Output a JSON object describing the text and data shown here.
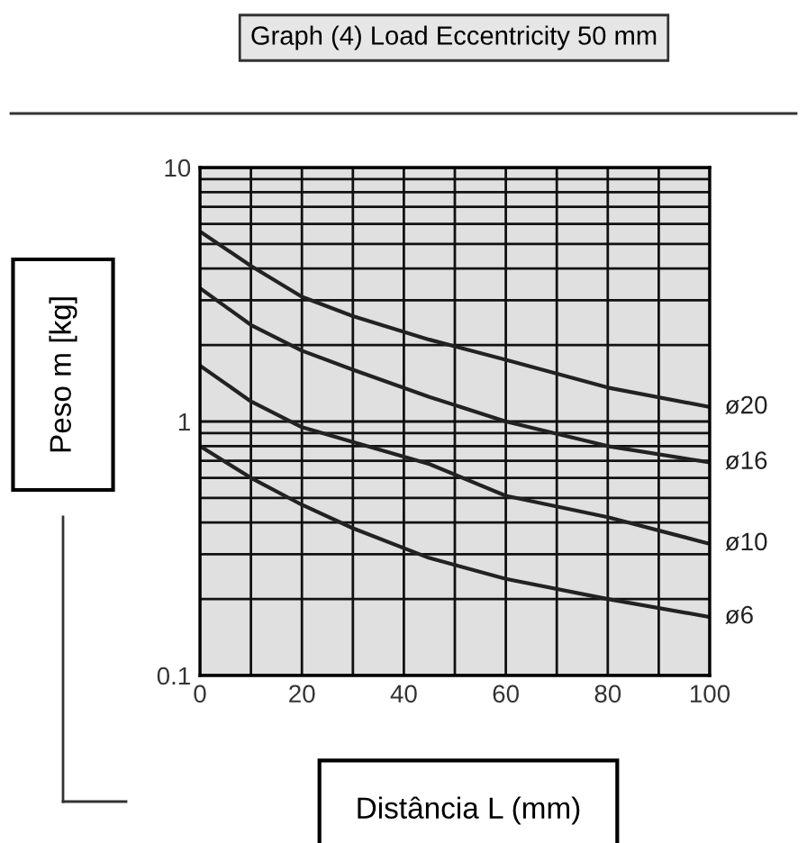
{
  "chart_data": {
    "type": "line",
    "title": "Graph (4) Load Eccentricity 50 mm",
    "xlabel": "Distância L (mm)",
    "ylabel": "Peso m [kg]",
    "log": true,
    "grid": true,
    "marker": "none",
    "line_style": "solid",
    "xlim": [
      0,
      100
    ],
    "ylim": [
      0.1,
      10
    ],
    "xticks": [
      0,
      {
        "value": 10,
        "label": null
      },
      20,
      {
        "value": 30,
        "label": null
      },
      40,
      {
        "value": 50,
        "label": null
      },
      60,
      {
        "value": 70,
        "label": null
      },
      80,
      {
        "value": 90,
        "label": null
      },
      100
    ],
    "yticks": [
      0.1,
      {
        "value": 0.2,
        "label": null
      },
      {
        "value": 0.3,
        "label": null
      },
      {
        "value": 0.4,
        "label": null
      },
      {
        "value": 0.5,
        "label": null
      },
      {
        "value": 0.6,
        "label": null
      },
      {
        "value": 0.7,
        "label": null
      },
      {
        "value": 0.8,
        "label": null
      },
      {
        "value": 0.9,
        "label": null
      },
      1,
      {
        "value": 2,
        "label": null
      },
      {
        "value": 3,
        "label": null
      },
      {
        "value": 4,
        "label": null
      },
      {
        "value": 5,
        "label": null
      },
      {
        "value": 6,
        "label": null
      },
      {
        "value": 7,
        "label": null
      },
      {
        "value": 8,
        "label": null
      },
      {
        "value": 9,
        "label": null
      },
      10
    ],
    "x": [
      0,
      10,
      20,
      30,
      45,
      60,
      80,
      100
    ],
    "series": [
      {
        "name": "ø20",
        "color": "#222222",
        "values": [
          5.6,
          4.1,
          3.1,
          2.6,
          2.1,
          1.75,
          1.36,
          1.14
        ]
      },
      {
        "name": "ø16",
        "color": "#222222",
        "values": [
          3.35,
          2.4,
          1.9,
          1.6,
          1.25,
          1.0,
          0.8,
          0.69
        ]
      },
      {
        "name": "ø10",
        "color": "#222222",
        "values": [
          1.66,
          1.2,
          0.95,
          0.83,
          0.68,
          0.51,
          0.42,
          0.33
        ]
      },
      {
        "name": "ø6",
        "color": "#222222",
        "values": [
          0.8,
          0.6,
          0.47,
          0.38,
          0.29,
          0.24,
          0.2,
          0.17
        ]
      }
    ]
  }
}
